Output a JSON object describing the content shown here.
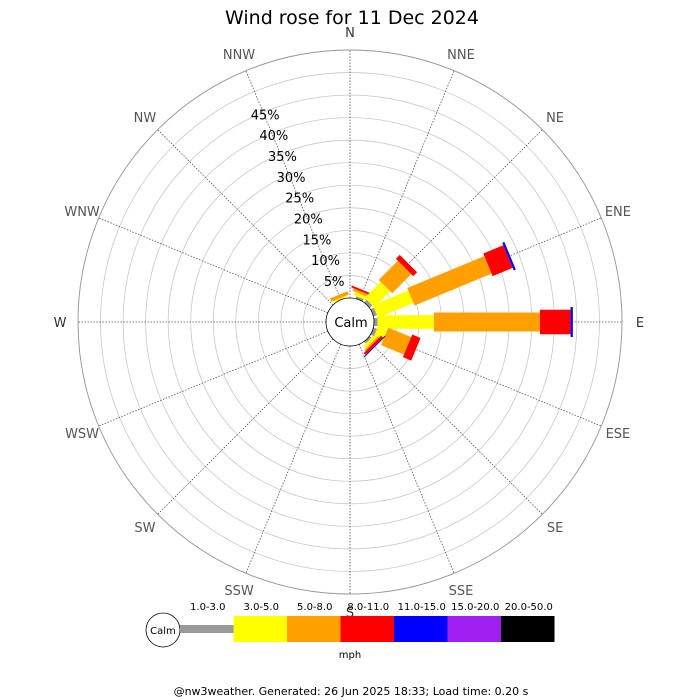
{
  "chart_data": {
    "type": "wind-rose",
    "title": "Wind rose for 11 Dec 2024",
    "calm_label": "Calm",
    "directions": [
      "N",
      "NNE",
      "NE",
      "ENE",
      "E",
      "ESE",
      "SE",
      "SSE",
      "S",
      "SSW",
      "SW",
      "WSW",
      "W",
      "WNW",
      "NW",
      "NNW"
    ],
    "radial_ticks": [
      5,
      10,
      15,
      20,
      25,
      30,
      35,
      40,
      45
    ],
    "radial_tick_labels": [
      "5%",
      "10%",
      "15%",
      "20%",
      "25%",
      "30%",
      "35%",
      "40%",
      "45%"
    ],
    "radial_max": 55,
    "speed_bins": [
      {
        "label": "1.0-3.0",
        "color": "#999999"
      },
      {
        "label": "3.0-5.0",
        "color": "#ffff00"
      },
      {
        "label": "5.0-8.0",
        "color": "#ffa000"
      },
      {
        "label": "8.0-11.0",
        "color": "#ff0000"
      },
      {
        "label": "11.0-15.0",
        "color": "#0000ff"
      },
      {
        "label": "15.0-20.0",
        "color": "#a020f0"
      },
      {
        "label": "20.0-50.0",
        "color": "#000000"
      }
    ],
    "speed_unit": "mph",
    "series": [
      {
        "direction": "N",
        "values": [
          0,
          0,
          0,
          0,
          0,
          0,
          0
        ]
      },
      {
        "direction": "NNE",
        "values": [
          0.5,
          0.8,
          0.6,
          0.4,
          0,
          0,
          0
        ]
      },
      {
        "direction": "NE",
        "values": [
          0.8,
          5.0,
          6.0,
          1.2,
          0,
          0,
          0
        ]
      },
      {
        "direction": "ENE",
        "values": [
          0.8,
          8.5,
          18.5,
          4.8,
          0.5,
          0,
          0
        ]
      },
      {
        "direction": "E",
        "values": [
          0.8,
          12.5,
          23.5,
          6.8,
          0.5,
          0,
          0
        ]
      },
      {
        "direction": "ESE",
        "values": [
          0.8,
          2.2,
          5.5,
          2.0,
          0,
          0,
          0
        ]
      },
      {
        "direction": "SE",
        "values": [
          0.5,
          0.8,
          0.4,
          0.6,
          0.2,
          0,
          0
        ]
      },
      {
        "direction": "SSE",
        "values": [
          0,
          0,
          0,
          0,
          0,
          0,
          0
        ]
      },
      {
        "direction": "S",
        "values": [
          0,
          0,
          0,
          0,
          0,
          0,
          0
        ]
      },
      {
        "direction": "SSW",
        "values": [
          0,
          0,
          0,
          0,
          0,
          0,
          0
        ]
      },
      {
        "direction": "SW",
        "values": [
          0,
          0,
          0,
          0,
          0,
          0,
          0
        ]
      },
      {
        "direction": "WSW",
        "values": [
          0,
          0,
          0,
          0,
          0,
          0,
          0
        ]
      },
      {
        "direction": "W",
        "values": [
          0,
          0,
          0,
          0,
          0,
          0,
          0
        ]
      },
      {
        "direction": "WNW",
        "values": [
          0,
          0,
          0,
          0,
          0,
          0,
          0
        ]
      },
      {
        "direction": "NW",
        "values": [
          0,
          0,
          0,
          0,
          0,
          0,
          0
        ]
      },
      {
        "direction": "NNW",
        "values": [
          0,
          0.4,
          0.8,
          0,
          0,
          0,
          0
        ]
      }
    ],
    "grid": true,
    "legend": "bottom"
  },
  "footer": {
    "text": "@nw3weather. Generated: 26 Jun 2025 18:33; Load time: 0.20 s"
  }
}
